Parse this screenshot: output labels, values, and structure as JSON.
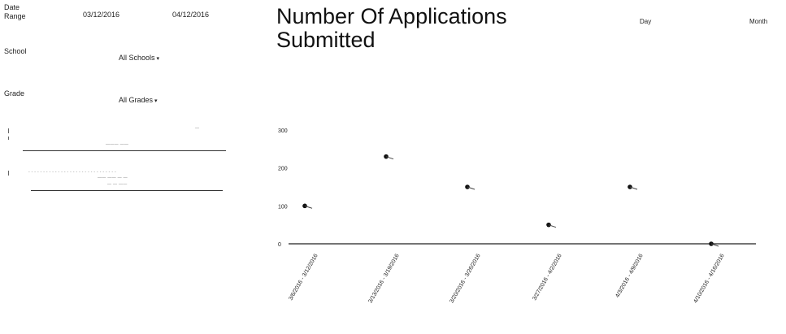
{
  "filters": {
    "date_range_label": "Date Range",
    "date_from": "03/12/2016",
    "date_to": "04/12/2016",
    "school_label": "School",
    "school_value": "All Schools",
    "grade_label": "Grade",
    "grade_value": "All Grades"
  },
  "toggles": {
    "day": "Day",
    "month": "Month"
  },
  "chart_data": {
    "type": "line",
    "title": "Number Of Applications Submitted",
    "ylim": [
      0,
      300
    ],
    "yticks": [
      0,
      100,
      200,
      300
    ],
    "categories": [
      "3/6/2016 - 3/12/2016",
      "3/13/2016 - 3/19/2016",
      "3/20/2016 - 3/26/2016",
      "3/27/2016 - 4/2/2016",
      "4/3/2016 - 4/9/2016",
      "4/10/2016 - 4/16/2016"
    ],
    "series": [
      {
        "values": [
          100,
          230,
          150,
          50,
          150,
          0
        ]
      }
    ]
  }
}
